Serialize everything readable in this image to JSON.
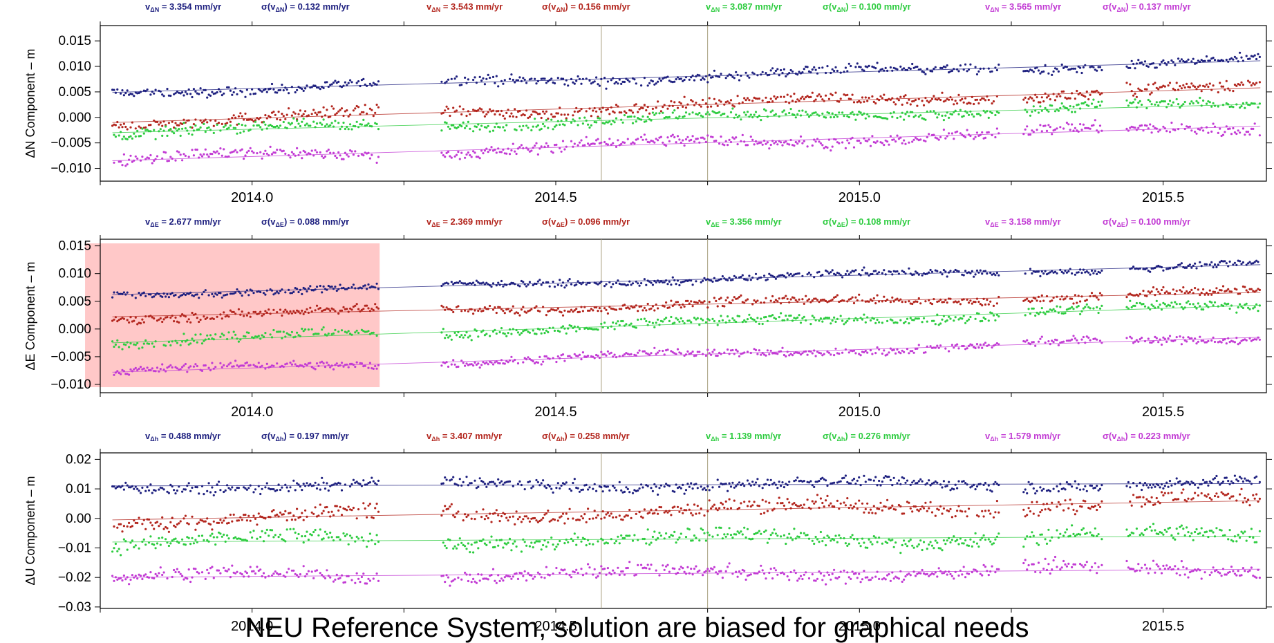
{
  "caption": "NEU Reference System, solution are biased for graphical needs",
  "colors": {
    "s1": "#1f2180",
    "s2": "#b3261e",
    "s3": "#2ecc40",
    "s4": "#c23bd4",
    "highlight": "#ffc8c8"
  },
  "chart_data": [
    {
      "type": "scatter",
      "ylabel": "ΔN Component – m",
      "xlabel": "",
      "xlim": [
        2013.75,
        2015.67
      ],
      "ylim": [
        -0.0125,
        0.018
      ],
      "yticks": [
        "0.015",
        "0.010",
        "0.005",
        "0.000",
        "−0.005",
        "−0.010"
      ],
      "ytick_values": [
        0.015,
        0.01,
        0.005,
        0.0,
        -0.005,
        -0.01
      ],
      "xticks": [
        "2014.0",
        "2014.5",
        "2015.0",
        "2015.5"
      ],
      "xtick_values": [
        2014.0,
        2014.5,
        2015.0,
        2015.5
      ],
      "vlines": [
        2014.575,
        2014.75
      ],
      "highlight": null,
      "series": [
        {
          "vel_label": "v",
          "vel_sub": "ΔN",
          "vel_value": " = 3.354 mm/yr",
          "sig_label": "σ(v",
          "sig_sub": "ΔN",
          "sig_value": ") = 0.132 mm/yr",
          "trend": [
            0.0049,
            0.0111
          ],
          "noise": 0.0009
        },
        {
          "vel_label": "v",
          "vel_sub": "ΔN",
          "vel_value": " = 3.543 mm/yr",
          "sig_label": "σ(v",
          "sig_sub": "ΔN",
          "sig_value": ") = 0.156 mm/yr",
          "trend": [
            -0.001,
            0.0058
          ],
          "noise": 0.0011
        },
        {
          "vel_label": "v",
          "vel_sub": "ΔN",
          "vel_value": " = 3.087 mm/yr",
          "sig_label": "σ(v",
          "sig_sub": "ΔN",
          "sig_value": ") = 0.100 mm/yr",
          "trend": [
            -0.003,
            0.0026
          ],
          "noise": 0.001
        },
        {
          "vel_label": "v",
          "vel_sub": "ΔN",
          "vel_value": " = 3.565 mm/yr",
          "sig_label": "σ(v",
          "sig_sub": "ΔN",
          "sig_value": ") = 0.137 mm/yr",
          "trend": [
            -0.0085,
            -0.0017
          ],
          "noise": 0.0011
        }
      ]
    },
    {
      "type": "scatter",
      "ylabel": "ΔE Component – m",
      "xlabel": "",
      "xlim": [
        2013.75,
        2015.67
      ],
      "ylim": [
        -0.0115,
        0.0162
      ],
      "yticks": [
        "0.015",
        "0.010",
        "0.005",
        "0.000",
        "−0.005",
        "−0.010"
      ],
      "ytick_values": [
        0.015,
        0.01,
        0.005,
        0.0,
        -0.005,
        -0.01
      ],
      "xticks": [
        "2014.0",
        "2014.5",
        "2015.0",
        "2015.5"
      ],
      "xtick_values": [
        2014.0,
        2014.5,
        2015.0,
        2015.5
      ],
      "vlines": [
        2014.575,
        2014.75
      ],
      "highlight": [
        2013.725,
        2014.21
      ],
      "series": [
        {
          "vel_label": "v",
          "vel_sub": "ΔE",
          "vel_value": " = 2.677 mm/yr",
          "sig_label": "σ(v",
          "sig_sub": "ΔE",
          "sig_value": ") = 0.088 mm/yr",
          "trend": [
            0.0062,
            0.0116
          ],
          "noise": 0.0006
        },
        {
          "vel_label": "v",
          "vel_sub": "ΔE",
          "vel_value": " = 2.369 mm/yr",
          "sig_label": "σ(v",
          "sig_sub": "ΔE",
          "sig_value": ") = 0.096 mm/yr",
          "trend": [
            0.0022,
            0.0066
          ],
          "noise": 0.0008
        },
        {
          "vel_label": "v",
          "vel_sub": "ΔE",
          "vel_value": " = 3.356 mm/yr",
          "sig_label": "σ(v",
          "sig_sub": "ΔE",
          "sig_value": ") = 0.108 mm/yr",
          "trend": [
            -0.0025,
            0.0043
          ],
          "noise": 0.0009
        },
        {
          "vel_label": "v",
          "vel_sub": "ΔE",
          "vel_value": " = 3.158 mm/yr",
          "sig_label": "σ(v",
          "sig_sub": "ΔE",
          "sig_value": ") = 0.100 mm/yr",
          "trend": [
            -0.0078,
            -0.0015
          ],
          "noise": 0.0007
        }
      ]
    },
    {
      "type": "scatter",
      "ylabel": "ΔU Component – m",
      "xlabel": "",
      "xlim": [
        2013.75,
        2015.67
      ],
      "ylim": [
        -0.0305,
        0.0222
      ],
      "yticks": [
        "0.02",
        "0.01",
        "0.00",
        "−0.01",
        "−0.02",
        "−0.03"
      ],
      "ytick_values": [
        0.02,
        0.01,
        0.0,
        -0.01,
        -0.02,
        -0.03
      ],
      "xticks": [
        "2014.0",
        "2014.5",
        "2015.0",
        "2015.5"
      ],
      "xtick_values": [
        2014.0,
        2014.5,
        2015.0,
        2015.5
      ],
      "vlines": [
        2014.575,
        2014.75
      ],
      "highlight": null,
      "series": [
        {
          "vel_label": "v",
          "vel_sub": "Δh",
          "vel_value": " = 0.488 mm/yr",
          "sig_label": "σ(v",
          "sig_sub": "Δh",
          "sig_value": ") = 0.197 mm/yr",
          "trend": [
            0.011,
            0.0118
          ],
          "noise": 0.0018
        },
        {
          "vel_label": "v",
          "vel_sub": "Δh",
          "vel_value": " = 3.407 mm/yr",
          "sig_label": "σ(v",
          "sig_sub": "Δh",
          "sig_value": ") = 0.258 mm/yr",
          "trend": [
            -0.0005,
            0.006
          ],
          "noise": 0.0025
        },
        {
          "vel_label": "v",
          "vel_sub": "Δh",
          "vel_value": " = 1.139 mm/yr",
          "sig_label": "σ(v",
          "sig_sub": "Δh",
          "sig_value": ") = 0.276 mm/yr",
          "trend": [
            -0.008,
            -0.006
          ],
          "noise": 0.0025
        },
        {
          "vel_label": "v",
          "vel_sub": "Δh",
          "vel_value": " = 1.579 mm/yr",
          "sig_label": "σ(v",
          "sig_sub": "Δh",
          "sig_value": ") = 0.223 mm/yr",
          "trend": [
            -0.02,
            -0.0172
          ],
          "noise": 0.0022
        }
      ]
    }
  ]
}
